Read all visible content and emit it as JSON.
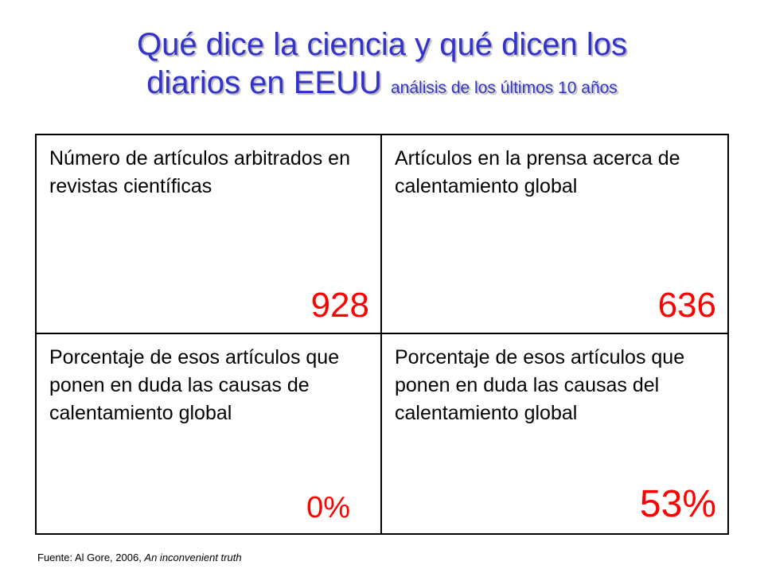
{
  "title": {
    "line1": "Qué dice la ciencia y qué dicen los",
    "line2": "diarios en EEUU",
    "subtitle": "análisis de los últimos 10 años"
  },
  "table": {
    "cells": [
      {
        "label": "Número de artículos arbitrados en revistas científicas",
        "value": "928"
      },
      {
        "label": "Artículos en la prensa acerca de calentamiento global",
        "value": "636"
      },
      {
        "label": "Porcentaje de esos artículos que ponen en duda las causas de calentamiento global",
        "value": "0%"
      },
      {
        "label": "Porcentaje de esos artículos que ponen en duda las causas del calentamiento global",
        "value": "53%"
      }
    ]
  },
  "source": {
    "prefix": "Fuente: Al Gore, 2006, ",
    "work": "An inconvenient truth"
  },
  "colors": {
    "title": "#3333cc",
    "value": "#ff0000"
  }
}
